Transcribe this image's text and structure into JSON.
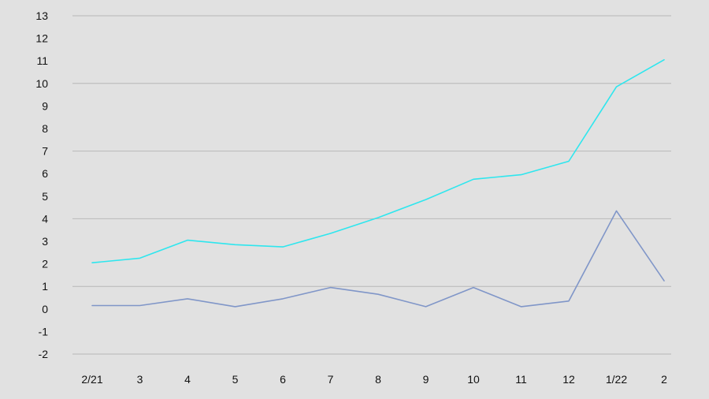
{
  "chart_data": {
    "type": "line",
    "categories": [
      "2/21",
      "3",
      "4",
      "5",
      "6",
      "7",
      "8",
      "9",
      "10",
      "11",
      "12",
      "1/22",
      "2"
    ],
    "series": [
      {
        "color": "#2ee6ee",
        "values": [
          2.05,
          2.25,
          3.05,
          2.85,
          2.75,
          3.35,
          4.05,
          4.85,
          5.75,
          5.95,
          6.55,
          9.85,
          11.05
        ]
      },
      {
        "color": "#8096c8",
        "values": [
          0.15,
          0.15,
          0.45,
          0.1,
          0.45,
          0.95,
          0.65,
          0.1,
          0.95,
          0.1,
          0.35,
          4.35,
          1.25
        ]
      }
    ],
    "yticks": [
      "13",
      "12",
      "11",
      "10",
      "9",
      "8",
      "7",
      "6",
      "5",
      "4",
      "3",
      "2",
      "1",
      "0",
      "-1",
      "-2"
    ],
    "ylim": [
      -2,
      13
    ],
    "major_gridlines": [
      13,
      10,
      7,
      4,
      1,
      -2
    ],
    "grid_color": "#b8b8b8",
    "background": "#e1e1e1"
  }
}
